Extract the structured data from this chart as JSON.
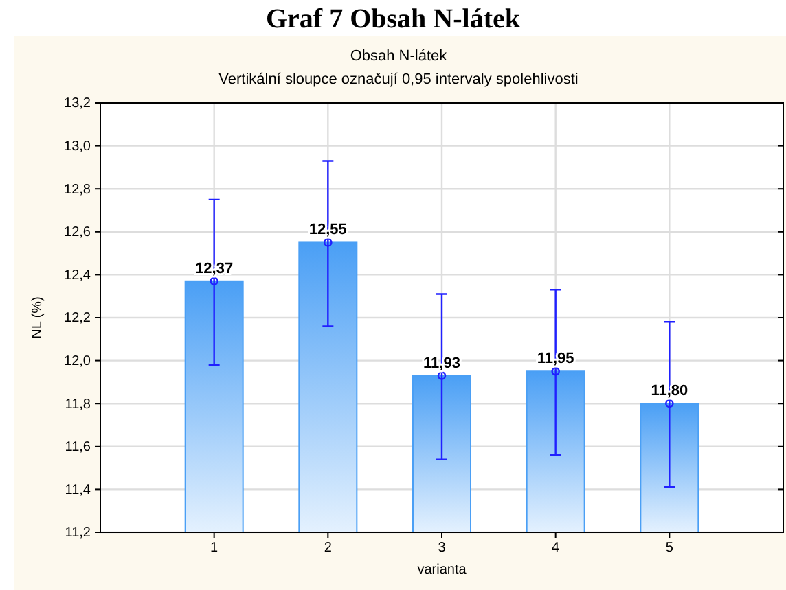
{
  "chart_data": {
    "type": "bar",
    "title": "Graf 7 Obsah N-látek",
    "subtitle": "Obsah N-látek\nVertikální sloupce označují 0,95 intervaly spolehlivosti",
    "xlabel": "varianta",
    "ylabel": "NL (%)",
    "categories": [
      "1",
      "2",
      "3",
      "4",
      "5"
    ],
    "values": [
      12.37,
      12.55,
      11.93,
      11.95,
      11.8
    ],
    "value_labels": [
      "12,37",
      "12,55",
      "11,93",
      "11,95",
      "11,80"
    ],
    "errors": [
      [
        11.98,
        12.75
      ],
      [
        12.16,
        12.93
      ],
      [
        11.54,
        12.31
      ],
      [
        11.56,
        12.33
      ],
      [
        11.41,
        12.18
      ]
    ],
    "color": "#4a9ff5",
    "grid": true,
    "series": [
      {
        "type": "scatter",
        "x": [
          "1",
          "2",
          "3",
          "4",
          "5"
        ],
        "values": [
          12.37,
          12.55,
          11.93,
          11.95,
          11.8
        ],
        "color": "#2020ff",
        "marker": "circle"
      }
    ],
    "ylim": [
      11.2,
      13.2
    ],
    "yticks": [
      {
        "value": 11.2,
        "label": "11,2"
      },
      {
        "value": 11.4,
        "label": "11,4"
      },
      {
        "value": 11.6,
        "label": "11,6"
      },
      {
        "value": 11.8,
        "label": "11,8"
      },
      {
        "value": 12.0,
        "label": "12,0"
      },
      {
        "value": 12.2,
        "label": "12,2"
      },
      {
        "value": 12.4,
        "label": "12,4"
      },
      {
        "value": 12.6,
        "label": "12,6"
      },
      {
        "value": 12.8,
        "label": "12,8"
      },
      {
        "value": 13.0,
        "label": "13,0"
      },
      {
        "value": 13.2,
        "label": "13,2"
      }
    ]
  }
}
